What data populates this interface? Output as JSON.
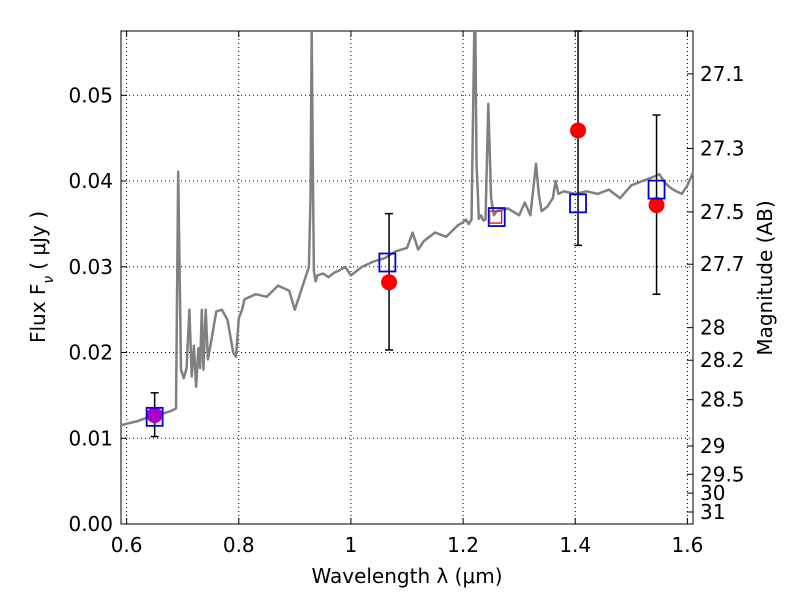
{
  "chart_data": {
    "type": "scatter",
    "xlabel": "Wavelength  λ (μm)",
    "ylabel": "Flux  F",
    "ylabel_sub": "ν",
    "ylabel_unit": "(  μJy )",
    "y2label": "Magnitude (AB)",
    "xlim": [
      0.59,
      1.61
    ],
    "ylim": [
      0.0,
      0.0575
    ],
    "grid": true,
    "x_ticks": [
      0.6,
      0.8,
      1.0,
      1.2,
      1.4,
      1.6
    ],
    "x_tick_labels": [
      "0.6",
      "0.8",
      "1",
      "1.2",
      "1.4",
      "1.6"
    ],
    "y_ticks": [
      0.0,
      0.01,
      0.02,
      0.03,
      0.04,
      0.05
    ],
    "y_tick_labels": [
      "0.00",
      "0.01",
      "0.02",
      "0.03",
      "0.04",
      "0.05"
    ],
    "mag_ticks": [
      {
        "label": "27.1",
        "flux": 0.0525
      },
      {
        "label": "27.3",
        "flux": 0.0438
      },
      {
        "label": "27.5",
        "flux": 0.0364
      },
      {
        "label": "27.7",
        "flux": 0.0303
      },
      {
        "label": "28",
        "flux": 0.0229
      },
      {
        "label": "28.2",
        "flux": 0.0191
      },
      {
        "label": "28.5",
        "flux": 0.0145
      },
      {
        "label": "29",
        "flux": 0.0091
      },
      {
        "label": "29.5",
        "flux": 0.0058
      },
      {
        "label": "30",
        "flux": 0.0036
      },
      {
        "label": "31",
        "flux": 0.0014
      }
    ],
    "model_spectrum": {
      "color": "#808080",
      "x": [
        0.59,
        0.6,
        0.62,
        0.64,
        0.66,
        0.68,
        0.688,
        0.692,
        0.697,
        0.702,
        0.707,
        0.712,
        0.716,
        0.72,
        0.724,
        0.728,
        0.731,
        0.734,
        0.737,
        0.741,
        0.745,
        0.75,
        0.76,
        0.77,
        0.78,
        0.79,
        0.795,
        0.8,
        0.803,
        0.806,
        0.81,
        0.83,
        0.85,
        0.87,
        0.89,
        0.9,
        0.91,
        0.92,
        0.925,
        0.928,
        0.93,
        0.932,
        0.934,
        0.937,
        0.94,
        0.95,
        0.96,
        0.97,
        0.98,
        0.99,
        1.0,
        1.02,
        1.04,
        1.06,
        1.08,
        1.1,
        1.11,
        1.12,
        1.13,
        1.15,
        1.17,
        1.19,
        1.2,
        1.205,
        1.21,
        1.215,
        1.22,
        1.222,
        1.224,
        1.226,
        1.228,
        1.232,
        1.236,
        1.24,
        1.245,
        1.25,
        1.255,
        1.26,
        1.28,
        1.3,
        1.31,
        1.32,
        1.325,
        1.33,
        1.335,
        1.34,
        1.35,
        1.36,
        1.365,
        1.37,
        1.38,
        1.4,
        1.42,
        1.44,
        1.46,
        1.48,
        1.5,
        1.52,
        1.54,
        1.55,
        1.56,
        1.57,
        1.58,
        1.59,
        1.6,
        1.61
      ],
      "flux": [
        0.0115,
        0.0117,
        0.012,
        0.0125,
        0.0128,
        0.0132,
        0.0135,
        0.0411,
        0.018,
        0.017,
        0.0182,
        0.025,
        0.0172,
        0.0208,
        0.016,
        0.0205,
        0.0182,
        0.025,
        0.018,
        0.025,
        0.0192,
        0.021,
        0.0248,
        0.025,
        0.0238,
        0.02,
        0.0195,
        0.024,
        0.0245,
        0.025,
        0.0262,
        0.0268,
        0.0265,
        0.0278,
        0.0272,
        0.025,
        0.027,
        0.029,
        0.03,
        0.038,
        0.0575,
        0.042,
        0.0295,
        0.0283,
        0.029,
        0.0292,
        0.0288,
        0.0293,
        0.0296,
        0.03,
        0.029,
        0.03,
        0.0306,
        0.031,
        0.0318,
        0.0322,
        0.034,
        0.032,
        0.033,
        0.034,
        0.0335,
        0.0348,
        0.0352,
        0.0355,
        0.035,
        0.0355,
        0.0575,
        0.0575,
        0.042,
        0.039,
        0.0356,
        0.036,
        0.0354,
        0.0355,
        0.049,
        0.038,
        0.036,
        0.0365,
        0.0368,
        0.036,
        0.0375,
        0.036,
        0.039,
        0.042,
        0.0385,
        0.0365,
        0.037,
        0.038,
        0.04,
        0.0385,
        0.0388,
        0.0385,
        0.0388,
        0.0385,
        0.039,
        0.038,
        0.0395,
        0.04,
        0.0405,
        0.0408,
        0.0398,
        0.0392,
        0.0388,
        0.0385,
        0.0395,
        0.041
      ]
    },
    "model_points": {
      "color": "#0000dd",
      "x": [
        0.65,
        1.065,
        1.26,
        1.405,
        1.545
      ],
      "y": [
        0.0125,
        0.0305,
        0.0358,
        0.0374,
        0.039
      ]
    },
    "model_points_small": {
      "color": "#cc2222",
      "x": [
        1.258
      ],
      "y": [
        0.0358
      ]
    },
    "observed": {
      "color": "#ff0000",
      "purple": "#aa00cc",
      "x": [
        0.65,
        1.068,
        1.405,
        1.545
      ],
      "y": [
        0.0127,
        0.0282,
        0.0459,
        0.0372
      ],
      "err_low": [
        0.0102,
        0.0203,
        0.0325,
        0.0268
      ],
      "err_high": [
        0.0153,
        0.0362,
        0.0575,
        0.0477
      ]
    }
  }
}
